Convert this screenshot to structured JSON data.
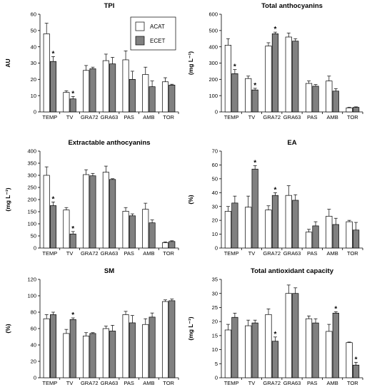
{
  "legend": [
    {
      "label": "ACAT",
      "color": "#ffffff"
    },
    {
      "label": "ECET",
      "color": "#808080"
    }
  ],
  "chart_data": [
    {
      "type": "bar",
      "title": "TPI",
      "ylabel": "AU",
      "ylim": [
        0,
        60
      ],
      "yticks": [
        0,
        10,
        20,
        30,
        40,
        50,
        60
      ],
      "categories": [
        "TEMP",
        "TV",
        "GRA72",
        "GRA63",
        "PAS",
        "AMB",
        "TOR"
      ],
      "series": [
        {
          "name": "ACAT",
          "values": [
            48,
            12,
            25.5,
            31.5,
            32,
            23,
            18.5
          ],
          "errors": [
            6.5,
            1,
            3,
            4,
            5.5,
            4.5,
            2.5
          ]
        },
        {
          "name": "ECET",
          "values": [
            31,
            8,
            26.5,
            29.5,
            20,
            15.5,
            16.5
          ],
          "errors": [
            3,
            1.5,
            1,
            4,
            5,
            3.5,
            0.5
          ]
        }
      ],
      "significance": [
        {
          "category": "TEMP",
          "series": "ECET",
          "label": "*"
        },
        {
          "category": "TV",
          "series": "ECET",
          "label": "*"
        }
      ],
      "legend": "top-right"
    },
    {
      "type": "bar",
      "title": "Total anthocyanins",
      "ylabel": "(mg L⁻¹)",
      "ylim": [
        0,
        600
      ],
      "yticks": [
        0,
        100,
        200,
        300,
        400,
        500,
        600
      ],
      "categories": [
        "TEMP",
        "TV",
        "GRA72",
        "GRA63",
        "PAS",
        "AMB",
        "TOR"
      ],
      "series": [
        {
          "name": "ACAT",
          "values": [
            410,
            205,
            405,
            460,
            175,
            190,
            25
          ],
          "errors": [
            40,
            15,
            20,
            25,
            15,
            30,
            3
          ]
        },
        {
          "name": "ECET",
          "values": [
            235,
            135,
            480,
            435,
            158,
            128,
            28
          ],
          "errors": [
            25,
            10,
            10,
            15,
            10,
            15,
            3
          ]
        }
      ],
      "significance": [
        {
          "category": "TEMP",
          "series": "ECET",
          "label": "*"
        },
        {
          "category": "TV",
          "series": "ECET",
          "label": "*"
        },
        {
          "category": "GRA72",
          "series": "ECET",
          "label": "*"
        }
      ]
    },
    {
      "type": "bar",
      "title": "Extractable anthocyanins",
      "ylabel": "(mg L⁻¹)",
      "ylim": [
        0,
        400
      ],
      "yticks": [
        0,
        50,
        100,
        150,
        200,
        250,
        300,
        350,
        400
      ],
      "categories": [
        "TEMP",
        "TV",
        "GRA72",
        "GRA63",
        "PAS",
        "AMB",
        "TOR"
      ],
      "series": [
        {
          "name": "ACAT",
          "values": [
            300,
            157,
            303,
            313,
            152,
            160,
            22
          ],
          "errors": [
            35,
            10,
            20,
            25,
            15,
            25,
            3
          ]
        },
        {
          "name": "ECET",
          "values": [
            175,
            58,
            298,
            283,
            133,
            104,
            27
          ],
          "errors": [
            15,
            10,
            10,
            3,
            8,
            12,
            3
          ]
        }
      ],
      "significance": [
        {
          "category": "TEMP",
          "series": "ECET",
          "label": "*"
        },
        {
          "category": "TV",
          "series": "ECET",
          "label": "*"
        }
      ]
    },
    {
      "type": "bar",
      "title": "EA",
      "ylabel": "(%)",
      "ylim": [
        0,
        70
      ],
      "yticks": [
        0,
        10,
        20,
        30,
        40,
        50,
        60,
        70
      ],
      "categories": [
        "TEMP",
        "TV",
        "GRA72",
        "GRA63",
        "PAS",
        "AMB",
        "TOR"
      ],
      "series": [
        {
          "name": "ACAT",
          "values": [
            26.5,
            29.5,
            27.5,
            38,
            11.5,
            23,
            19
          ],
          "errors": [
            3.5,
            8,
            3,
            7,
            2,
            5,
            1
          ]
        },
        {
          "name": "ECET",
          "values": [
            32.5,
            57,
            38,
            34.5,
            16,
            17,
            13
          ],
          "errors": [
            5,
            2.5,
            2,
            4,
            3,
            4.5,
            5.5
          ]
        }
      ],
      "significance": [
        {
          "category": "TV",
          "series": "ECET",
          "label": "*"
        },
        {
          "category": "GRA72",
          "series": "ECET",
          "label": "*"
        }
      ]
    },
    {
      "type": "bar",
      "title": "SM",
      "ylabel": "(%)",
      "ylim": [
        0,
        120
      ],
      "yticks": [
        0,
        20,
        40,
        60,
        80,
        100,
        120
      ],
      "categories": [
        "TEMP",
        "TV",
        "GRA72",
        "GRA63",
        "PAS",
        "AMB",
        "TOR"
      ],
      "series": [
        {
          "name": "ACAT",
          "values": [
            72,
            54,
            51,
            60,
            77,
            65,
            93
          ],
          "errors": [
            5,
            5,
            4,
            3,
            4,
            7,
            2
          ]
        },
        {
          "name": "ECET",
          "values": [
            77,
            71,
            54,
            57,
            67,
            74,
            94
          ],
          "errors": [
            3,
            2,
            1,
            7,
            9,
            5,
            2
          ]
        }
      ],
      "significance": [
        {
          "category": "TV",
          "series": "ECET",
          "label": "*"
        }
      ]
    },
    {
      "type": "bar",
      "title": "Total antioxidant capacity",
      "ylabel": "(mg L⁻¹)",
      "ylim": [
        0,
        35
      ],
      "yticks": [
        0,
        5,
        10,
        15,
        20,
        25,
        30,
        35
      ],
      "categories": [
        "TEMP",
        "TV",
        "GRA72",
        "GRA63",
        "PAS",
        "AMB",
        "TOR"
      ],
      "series": [
        {
          "name": "ACAT",
          "values": [
            17,
            18.5,
            22.5,
            30,
            21,
            16.5,
            12.5
          ],
          "errors": [
            2,
            2,
            2,
            3,
            1,
            2.5,
            0.2
          ]
        },
        {
          "name": "ECET",
          "values": [
            21.5,
            19.5,
            13,
            30,
            19.5,
            23,
            4.5
          ],
          "errors": [
            1.5,
            1,
            1.5,
            2,
            1.5,
            0.5,
            1
          ]
        }
      ],
      "significance": [
        {
          "category": "GRA72",
          "series": "ECET",
          "label": "*"
        },
        {
          "category": "AMB",
          "series": "ECET",
          "label": "*"
        },
        {
          "category": "TOR",
          "series": "ECET",
          "label": "*"
        }
      ]
    }
  ]
}
